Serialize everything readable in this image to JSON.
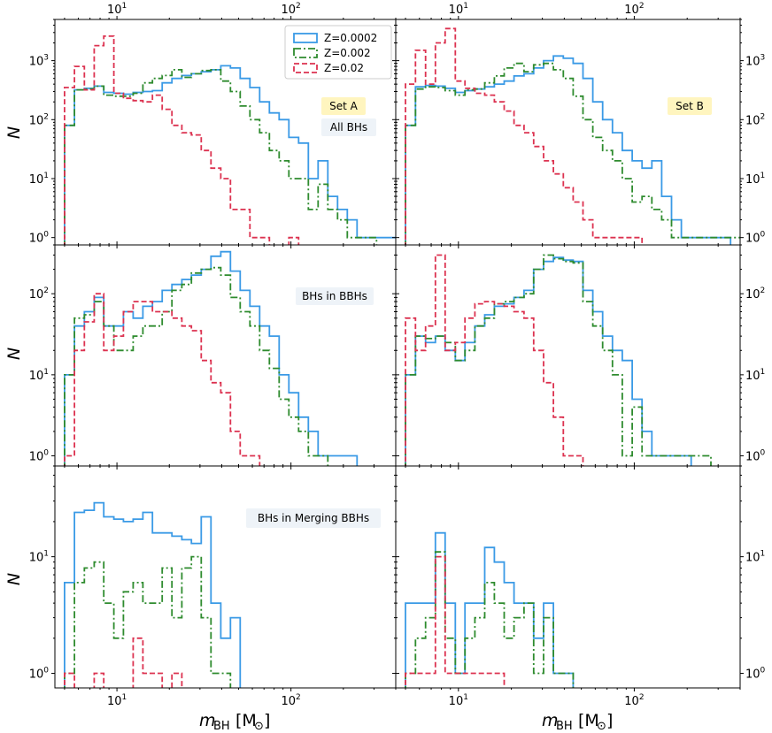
{
  "colors": {
    "z0002": "#3a9ae6",
    "z002": "#2e8b2e",
    "z02": "#dc3250",
    "annot_yellow": "#fff5bf",
    "annot_blue": "#eef3f8"
  },
  "xlabel": {
    "symbol": "m",
    "sub": "BH",
    "unit": "[M",
    "sun": "⊙",
    "close": "]"
  },
  "ylabel": "N",
  "x_top_ticks": [
    {
      "base": "10",
      "exp": "1"
    },
    {
      "base": "10",
      "exp": "2"
    }
  ],
  "chart_data": [
    {
      "type": "histogram",
      "panel": "top-left",
      "annotations": [
        "Set A",
        "All BHs"
      ],
      "yscale": "log",
      "xscale": "log",
      "xlim": [
        4.4,
        400
      ],
      "ylim": [
        0.75,
        5000
      ],
      "yticks": [
        {
          "base": "10",
          "exp": "0"
        },
        {
          "base": "10",
          "exp": "1"
        },
        {
          "base": "10",
          "exp": "2"
        },
        {
          "base": "10",
          "exp": "3"
        }
      ],
      "legend": {
        "position": "top-right",
        "entries": [
          "Z=0.0002",
          "Z=0.002",
          "Z=0.02"
        ]
      },
      "series": [
        {
          "name": "Z=0.0002",
          "style": "solid",
          "values": [
            80,
            320,
            340,
            370,
            290,
            280,
            270,
            290,
            300,
            310,
            420,
            500,
            560,
            600,
            650,
            700,
            820,
            750,
            500,
            350,
            200,
            130,
            100,
            50,
            40,
            10,
            20,
            5,
            3,
            2,
            1,
            1,
            1,
            1,
            1,
            0,
            0
          ]
        },
        {
          "name": "Z=0.002",
          "style": "dashdot",
          "values": [
            80,
            320,
            330,
            370,
            260,
            250,
            250,
            280,
            420,
            500,
            560,
            700,
            520,
            600,
            680,
            700,
            450,
            300,
            170,
            100,
            60,
            30,
            20,
            10,
            10,
            3,
            8,
            3,
            2,
            1,
            1,
            1,
            0,
            0,
            0,
            0,
            0
          ]
        },
        {
          "name": "Z=0.02",
          "style": "dashed",
          "values": [
            350,
            800,
            320,
            1800,
            2600,
            280,
            230,
            210,
            200,
            260,
            150,
            80,
            60,
            55,
            30,
            15,
            10,
            3,
            3,
            1,
            1,
            0,
            0,
            1,
            0,
            0,
            0,
            0,
            0,
            0,
            0,
            0,
            0,
            0,
            0,
            0,
            0
          ]
        }
      ]
    },
    {
      "type": "histogram",
      "panel": "top-right",
      "annotations": [
        "Set B"
      ],
      "yscale": "log",
      "xscale": "log",
      "xlim": [
        4.4,
        400
      ],
      "ylim": [
        0.75,
        5000
      ],
      "yticks": [
        {
          "base": "10",
          "exp": "0"
        },
        {
          "base": "10",
          "exp": "1"
        },
        {
          "base": "10",
          "exp": "2"
        },
        {
          "base": "10",
          "exp": "3"
        }
      ],
      "series": [
        {
          "name": "Z=0.0002",
          "style": "solid",
          "values": [
            80,
            360,
            380,
            370,
            340,
            290,
            310,
            330,
            360,
            400,
            450,
            550,
            600,
            750,
            1000,
            1200,
            1100,
            900,
            500,
            200,
            100,
            60,
            30,
            20,
            15,
            20,
            5,
            2,
            1,
            1,
            1,
            1,
            1,
            0,
            0,
            0,
            0
          ]
        },
        {
          "name": "Z=0.002",
          "style": "dashdot",
          "values": [
            80,
            330,
            360,
            350,
            310,
            260,
            320,
            330,
            420,
            550,
            750,
            900,
            650,
            850,
            900,
            700,
            500,
            250,
            100,
            50,
            30,
            20,
            10,
            4,
            5,
            3,
            2,
            1,
            1,
            1,
            1,
            1,
            1,
            1,
            1,
            1,
            0
          ]
        },
        {
          "name": "Z=0.02",
          "style": "dashed",
          "values": [
            400,
            1500,
            400,
            2000,
            3500,
            450,
            340,
            280,
            260,
            200,
            140,
            80,
            60,
            35,
            20,
            12,
            7,
            4,
            2,
            1,
            1,
            1,
            1,
            1,
            0,
            0,
            0,
            0,
            0,
            0,
            0,
            0,
            0,
            0,
            0,
            0,
            0
          ]
        }
      ]
    },
    {
      "type": "histogram",
      "panel": "middle-left",
      "annotations": [
        "BHs in BBHs"
      ],
      "yscale": "log",
      "xscale": "log",
      "xlim": [
        4.4,
        400
      ],
      "ylim": [
        0.75,
        400
      ],
      "yticks": [
        {
          "base": "10",
          "exp": "0"
        },
        {
          "base": "10",
          "exp": "1"
        },
        {
          "base": "10",
          "exp": "2"
        }
      ],
      "series": [
        {
          "name": "Z=0.0002",
          "style": "solid",
          "values": [
            10,
            40,
            60,
            90,
            40,
            40,
            60,
            50,
            70,
            80,
            110,
            130,
            150,
            170,
            200,
            290,
            330,
            190,
            110,
            70,
            40,
            30,
            10,
            6,
            3,
            2,
            1,
            1,
            1,
            1,
            0,
            0,
            0,
            0,
            0,
            0,
            0
          ]
        },
        {
          "name": "Z=0.002",
          "style": "dashdot",
          "values": [
            10,
            50,
            55,
            80,
            40,
            20,
            20,
            30,
            40,
            40,
            60,
            110,
            130,
            180,
            200,
            210,
            170,
            90,
            60,
            40,
            20,
            12,
            5,
            3,
            2,
            1,
            1,
            0,
            0,
            0,
            0,
            0,
            0,
            0,
            0,
            0,
            0
          ]
        },
        {
          "name": "Z=0.02",
          "style": "dashed",
          "values": [
            1,
            20,
            45,
            100,
            20,
            30,
            60,
            80,
            80,
            60,
            60,
            50,
            40,
            35,
            15,
            8,
            6,
            2,
            1,
            1,
            0,
            0,
            0,
            0,
            0,
            0,
            0,
            0,
            0,
            0,
            0,
            0,
            0,
            0,
            0,
            0,
            0
          ]
        }
      ]
    },
    {
      "type": "histogram",
      "panel": "middle-right",
      "yscale": "log",
      "xscale": "log",
      "xlim": [
        4.4,
        400
      ],
      "ylim": [
        0.75,
        400
      ],
      "yticks": [
        {
          "base": "10",
          "exp": "0"
        },
        {
          "base": "10",
          "exp": "1"
        },
        {
          "base": "10",
          "exp": "2"
        }
      ],
      "series": [
        {
          "name": "Z=0.0002",
          "style": "solid",
          "values": [
            10,
            30,
            25,
            30,
            20,
            15,
            25,
            40,
            55,
            70,
            75,
            90,
            110,
            200,
            250,
            280,
            260,
            250,
            110,
            60,
            30,
            20,
            15,
            5,
            2,
            1,
            1,
            1,
            1,
            0,
            0,
            0,
            0,
            0,
            0,
            0,
            0
          ]
        },
        {
          "name": "Z=0.002",
          "style": "dashdot",
          "values": [
            10,
            30,
            28,
            30,
            25,
            15,
            20,
            40,
            50,
            75,
            80,
            90,
            100,
            200,
            300,
            270,
            250,
            240,
            80,
            40,
            20,
            10,
            1,
            4,
            1,
            1,
            1,
            1,
            1,
            1,
            1,
            0,
            0,
            0,
            0,
            0,
            0
          ]
        },
        {
          "name": "Z=0.02",
          "style": "dashed",
          "values": [
            50,
            20,
            40,
            300,
            20,
            25,
            50,
            75,
            80,
            75,
            70,
            60,
            50,
            20,
            8,
            3,
            1,
            1,
            0,
            0,
            0,
            0,
            0,
            0,
            0,
            0,
            0,
            0,
            0,
            0,
            0,
            0,
            0,
            0,
            0,
            0,
            0
          ]
        }
      ]
    },
    {
      "type": "histogram",
      "panel": "bottom-left",
      "annotations": [
        "BHs in Merging BBHs"
      ],
      "yscale": "log",
      "xscale": "log",
      "xlim": [
        4.4,
        400
      ],
      "ylim": [
        0.75,
        60
      ],
      "yticks": [
        {
          "base": "10",
          "exp": "0"
        },
        {
          "base": "10",
          "exp": "1"
        }
      ],
      "series": [
        {
          "name": "Z=0.0002",
          "style": "solid",
          "values": [
            6,
            24,
            25,
            29,
            22,
            21,
            20,
            21,
            24,
            16,
            16,
            15,
            14,
            13,
            22,
            4,
            2,
            3,
            0,
            0,
            0,
            0,
            0,
            0,
            0,
            0,
            0,
            0,
            0,
            0,
            0,
            0,
            0,
            0,
            0,
            0,
            0
          ]
        },
        {
          "name": "Z=0.002",
          "style": "dashdot",
          "values": [
            1,
            6,
            8,
            9,
            4,
            2,
            5,
            6,
            4,
            4,
            8,
            3,
            8,
            10,
            3,
            1,
            1,
            0,
            0,
            0,
            0,
            0,
            0,
            0,
            0,
            0,
            0,
            0,
            0,
            0,
            0,
            0,
            0,
            0,
            0,
            0,
            0
          ]
        },
        {
          "name": "Z=0.02",
          "style": "dashed",
          "values": [
            1,
            0,
            0,
            1,
            0,
            0,
            0,
            2,
            1,
            1,
            0,
            1,
            0,
            0,
            0,
            0,
            0,
            0,
            0,
            0,
            0,
            0,
            0,
            0,
            0,
            0,
            0,
            0,
            0,
            0,
            0,
            0,
            0,
            0,
            0,
            0,
            0
          ]
        }
      ]
    },
    {
      "type": "histogram",
      "panel": "bottom-right",
      "yscale": "log",
      "xscale": "log",
      "xlim": [
        4.4,
        400
      ],
      "ylim": [
        0.75,
        60
      ],
      "yticks": [
        {
          "base": "10",
          "exp": "0"
        },
        {
          "base": "10",
          "exp": "1"
        }
      ],
      "series": [
        {
          "name": "Z=0.0002",
          "style": "solid",
          "values": [
            4,
            4,
            4,
            16,
            4,
            1,
            4,
            4,
            12,
            9,
            6,
            4,
            4,
            2,
            4,
            1,
            1,
            0,
            0,
            0,
            0,
            0,
            0,
            0,
            0,
            0,
            0,
            0,
            0,
            0,
            0,
            0,
            0,
            0,
            0,
            0,
            0
          ]
        },
        {
          "name": "Z=0.002",
          "style": "dashdot",
          "values": [
            1,
            2,
            3,
            11,
            2,
            1,
            2,
            3,
            6,
            4,
            2,
            3,
            4,
            1,
            3,
            1,
            1,
            0,
            0,
            0,
            0,
            0,
            0,
            0,
            0,
            0,
            0,
            0,
            0,
            0,
            0,
            0,
            0,
            0,
            0,
            0,
            0
          ]
        },
        {
          "name": "Z=0.02",
          "style": "dashed",
          "values": [
            1,
            1,
            1,
            10,
            1,
            1,
            1,
            1,
            1,
            1,
            0,
            0,
            0,
            0,
            0,
            0,
            0,
            0,
            0,
            0,
            0,
            0,
            0,
            0,
            0,
            0,
            0,
            0,
            0,
            0,
            0,
            0,
            0,
            0,
            0,
            0,
            0
          ]
        }
      ]
    }
  ],
  "bin_edges": [
    5,
    5.7,
    6.5,
    7.4,
    8.4,
    9.6,
    10.9,
    12.4,
    14.1,
    16,
    18.2,
    20.7,
    23.6,
    26.8,
    30.5,
    34.7,
    39.5,
    44.9,
    51.1,
    58.1,
    66.1,
    75.2,
    85.5,
    97.3,
    110.7,
    125.9,
    143.2,
    162.9,
    185.3,
    210.8,
    239.8,
    272.8,
    310.3,
    353,
    401.6,
    456.8,
    519.7,
    591.2
  ]
}
